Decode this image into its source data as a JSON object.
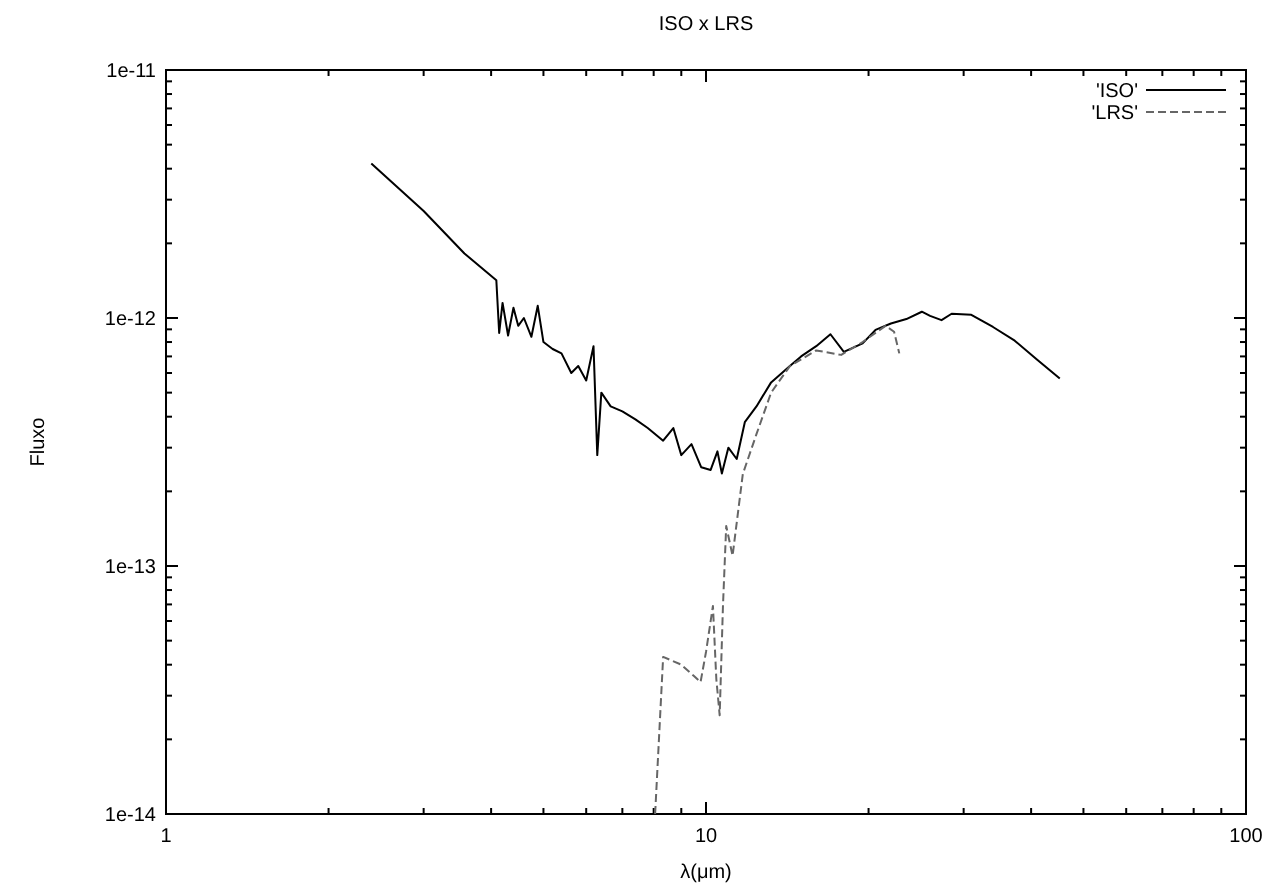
{
  "chart_data": {
    "type": "line",
    "title": "ISO x LRS",
    "xlabel": "λ(μm)",
    "ylabel": "Fluxo",
    "log": "xy",
    "xlim": [
      1,
      100
    ],
    "ylim": [
      1e-14,
      1e-11
    ],
    "xticks": [
      1,
      {
        "value": 2,
        "label": null
      },
      {
        "value": 3,
        "label": null
      },
      {
        "value": 4,
        "label": null
      },
      {
        "value": 5,
        "label": null
      },
      {
        "value": 6,
        "label": null
      },
      {
        "value": 7,
        "label": null
      },
      {
        "value": 8,
        "label": null
      },
      {
        "value": 9,
        "label": null
      },
      10,
      {
        "value": 20,
        "label": null
      },
      {
        "value": 30,
        "label": null
      },
      {
        "value": 40,
        "label": null
      },
      {
        "value": 50,
        "label": null
      },
      {
        "value": 60,
        "label": null
      },
      {
        "value": 70,
        "label": null
      },
      {
        "value": 80,
        "label": null
      },
      {
        "value": 90,
        "label": null
      },
      100
    ],
    "yticks": [
      {
        "value": 1e-14,
        "label": "1e-14"
      },
      {
        "value": 2e-14,
        "label": null
      },
      {
        "value": 3e-14,
        "label": null
      },
      {
        "value": 4e-14,
        "label": null
      },
      {
        "value": 5e-14,
        "label": null
      },
      {
        "value": 6e-14,
        "label": null
      },
      {
        "value": 7e-14,
        "label": null
      },
      {
        "value": 8e-14,
        "label": null
      },
      {
        "value": 9e-14,
        "label": null
      },
      {
        "value": 1e-13,
        "label": "1e-13"
      },
      {
        "value": 2e-13,
        "label": null
      },
      {
        "value": 3e-13,
        "label": null
      },
      {
        "value": 4e-13,
        "label": null
      },
      {
        "value": 5e-13,
        "label": null
      },
      {
        "value": 6e-13,
        "label": null
      },
      {
        "value": 7e-13,
        "label": null
      },
      {
        "value": 8e-13,
        "label": null
      },
      {
        "value": 9e-13,
        "label": null
      },
      {
        "value": 1e-12,
        "label": "1e-12"
      },
      {
        "value": 2e-12,
        "label": null
      },
      {
        "value": 3e-12,
        "label": null
      },
      {
        "value": 4e-12,
        "label": null
      },
      {
        "value": 5e-12,
        "label": null
      },
      {
        "value": 6e-12,
        "label": null
      },
      {
        "value": 7e-12,
        "label": null
      },
      {
        "value": 8e-12,
        "label": null
      },
      {
        "value": 9e-12,
        "label": null
      },
      {
        "value": 1e-11,
        "label": "1e-11"
      }
    ],
    "legend": "top right",
    "grid": false,
    "series": [
      {
        "name": "'ISO'",
        "color": "#000000",
        "line_style": "solid",
        "x": [
          2.4,
          3.0,
          3.57,
          4.09,
          4.14,
          4.2,
          4.3,
          4.4,
          4.49,
          4.6,
          4.75,
          4.88,
          5.0,
          5.2,
          5.4,
          5.63,
          5.8,
          6.0,
          6.19,
          6.29,
          6.4,
          6.66,
          7.0,
          7.4,
          7.8,
          8.33,
          8.7,
          9.0,
          9.4,
          9.8,
          10.2,
          10.5,
          10.7,
          11.0,
          11.4,
          11.8,
          12.4,
          13.2,
          14.3,
          15.0,
          16.0,
          17.0,
          18.0,
          19.5,
          20.6,
          22.0,
          23.5,
          25.1,
          26.0,
          27.3,
          28.5,
          31.0,
          34.0,
          37.3,
          41.0,
          45.2
        ],
        "values": [
          4.2e-12,
          2.7e-12,
          1.82e-12,
          1.42e-12,
          8.7e-13,
          1.15e-12,
          8.5e-13,
          1.1e-12,
          9.3e-13,
          1e-12,
          8.4e-13,
          1.12e-12,
          8e-13,
          7.5e-13,
          7.2e-13,
          6e-13,
          6.4e-13,
          5.6e-13,
          7.7e-13,
          2.8e-13,
          5e-13,
          4.4e-13,
          4.2e-13,
          3.9e-13,
          3.6e-13,
          3.2e-13,
          3.6e-13,
          2.8e-13,
          3.1e-13,
          2.5e-13,
          2.44e-13,
          2.9e-13,
          2.36e-13,
          3e-13,
          2.7e-13,
          3.8e-13,
          4.4e-13,
          5.5e-13,
          6.4e-13,
          7e-13,
          7.7e-13,
          8.6e-13,
          7.3e-13,
          7.9e-13,
          8.95e-13,
          9.5e-13,
          9.9e-13,
          1.06e-12,
          1.02e-12,
          9.8e-13,
          1.04e-12,
          1.03e-12,
          9.2e-13,
          8.1e-13,
          6.8e-13,
          5.7e-13
        ]
      },
      {
        "name": "'LRS'",
        "color": "#666666",
        "line_style": "dashed",
        "x": [
          8.05,
          8.33,
          9.0,
          9.5,
          9.77,
          10.0,
          10.3,
          10.45,
          10.6,
          10.75,
          10.9,
          11.2,
          11.7,
          12.4,
          13.2,
          14.3,
          16.0,
          17.8,
          19.5,
          21.5,
          22.3,
          22.8
        ],
        "values": [
          1e-14,
          4.3e-14,
          4e-14,
          3.6e-14,
          3.4e-14,
          4.5e-14,
          6.9e-14,
          3.5e-14,
          2.5e-14,
          6.9e-14,
          1.45e-13,
          1.1e-13,
          2.35e-13,
          3.4e-13,
          5e-13,
          6.4e-13,
          7.4e-13,
          7.1e-13,
          8e-13,
          9.3e-13,
          8.8e-13,
          7.2e-13
        ]
      }
    ]
  }
}
